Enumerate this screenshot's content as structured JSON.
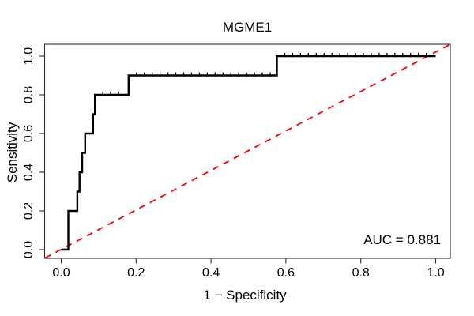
{
  "chart_data": {
    "type": "line",
    "subtype": "roc-step-curve",
    "title": "MGME1",
    "xlabel": "1 − Specificity",
    "ylabel": "Sensitivity",
    "xlim": [
      0,
      1
    ],
    "ylim": [
      0,
      1
    ],
    "grid": false,
    "legend": "none",
    "x_ticks": [
      0.0,
      0.2,
      0.4,
      0.6,
      0.8,
      1.0
    ],
    "x_tick_labels": [
      "0.0",
      "0.2",
      "0.4",
      "0.6",
      "0.8",
      "1.0"
    ],
    "y_ticks": [
      0.0,
      0.2,
      0.4,
      0.6,
      0.8,
      1.0
    ],
    "y_tick_labels": [
      "0.0",
      "0.2",
      "0.4",
      "0.6",
      "0.8",
      "1.0"
    ],
    "auc": 0.881,
    "annotations": [
      {
        "text": "AUC = 0.881",
        "anchor": "bottom-right"
      }
    ],
    "series": [
      {
        "name": "ROC curve",
        "color": "#000000",
        "line_style": "solid",
        "line_width": 2.4,
        "marker": "threshold-tick",
        "marker_spacing_x": 0.021,
        "points": [
          [
            0,
            0
          ],
          [
            0.019,
            0
          ],
          [
            0.019,
            0.2
          ],
          [
            0.043,
            0.2
          ],
          [
            0.043,
            0.3
          ],
          [
            0.049,
            0.3
          ],
          [
            0.049,
            0.4
          ],
          [
            0.056,
            0.4
          ],
          [
            0.056,
            0.5
          ],
          [
            0.064,
            0.5
          ],
          [
            0.064,
            0.6
          ],
          [
            0.085,
            0.6
          ],
          [
            0.085,
            0.7
          ],
          [
            0.09,
            0.7
          ],
          [
            0.09,
            0.8
          ],
          [
            0.18,
            0.8
          ],
          [
            0.18,
            0.9
          ],
          [
            0.576,
            0.9
          ],
          [
            0.576,
            1.0
          ],
          [
            1.0,
            1.0
          ]
        ]
      },
      {
        "name": "chance diagonal",
        "color": "#FF0000",
        "line_style": "dashed",
        "line_width": 1.8,
        "points": [
          [
            0,
            0
          ],
          [
            1,
            1
          ]
        ]
      }
    ]
  }
}
